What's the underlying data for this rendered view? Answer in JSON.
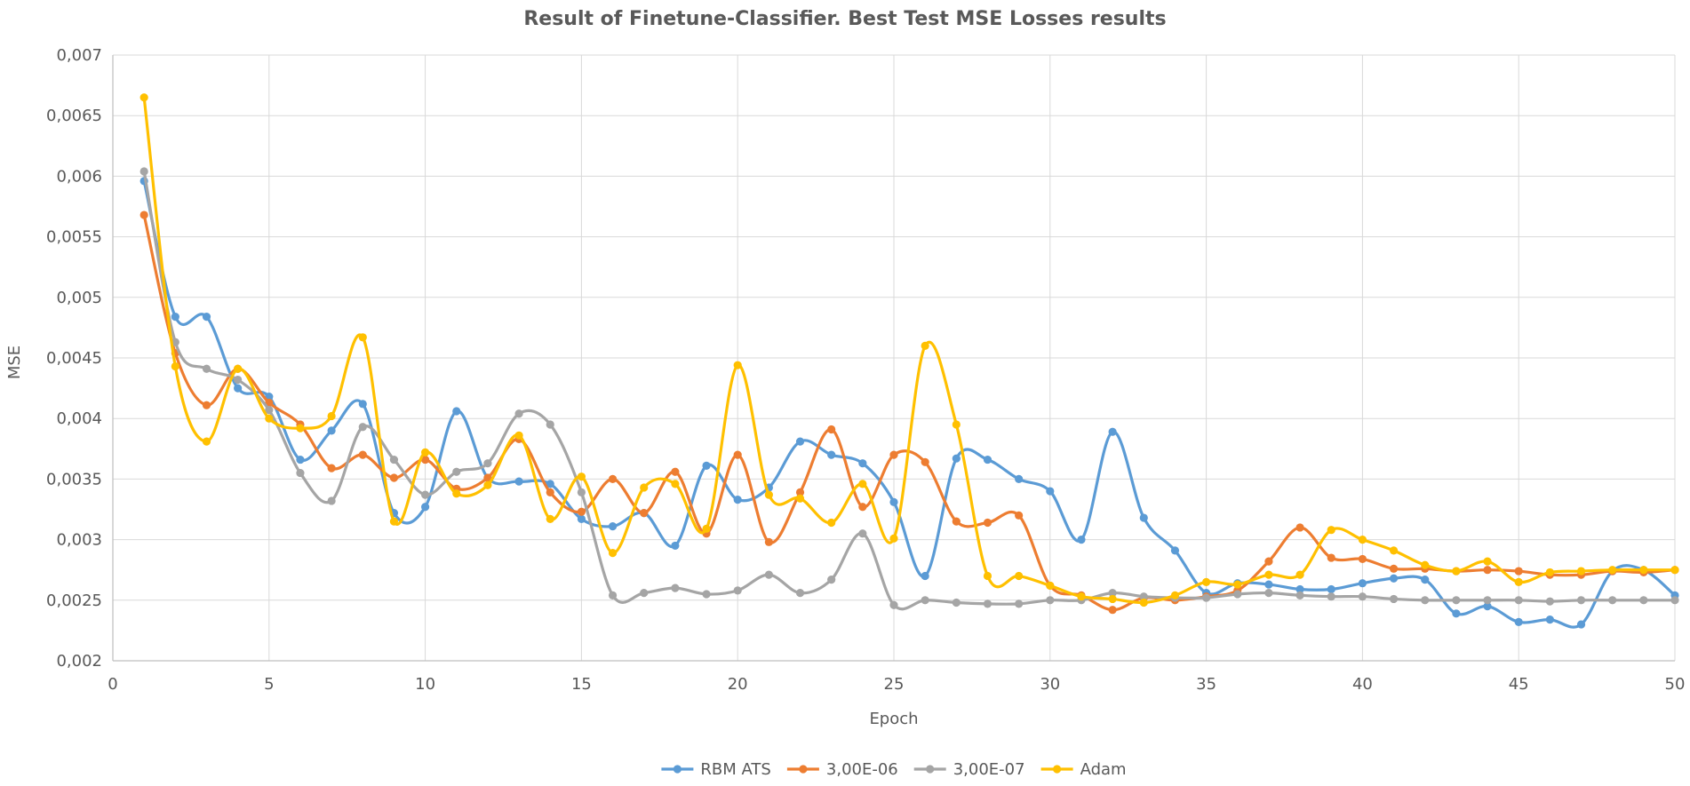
{
  "chart_data": {
    "type": "line",
    "title": "Result of Finetune-Classifier. Best Test MSE Losses results",
    "xlabel": "Epoch",
    "ylabel": "MSE",
    "xlim": [
      0,
      50
    ],
    "ylim": [
      0.002,
      0.007
    ],
    "x_ticks": [
      0,
      5,
      10,
      15,
      20,
      25,
      30,
      35,
      40,
      45,
      50
    ],
    "x_tick_labels": [
      "0",
      "5",
      "10",
      "15",
      "20",
      "25",
      "30",
      "35",
      "40",
      "45",
      "50"
    ],
    "y_ticks": [
      0.002,
      0.0025,
      0.003,
      0.0035,
      0.004,
      0.0045,
      0.005,
      0.0055,
      0.006,
      0.0065,
      0.007
    ],
    "y_tick_labels": [
      "0,002",
      "0,0025",
      "0,003",
      "0,0035",
      "0,004",
      "0,0045",
      "0,005",
      "0,0055",
      "0,006",
      "0,0065",
      "0,007"
    ],
    "grid": true,
    "smooth": true,
    "legend_position": "bottom",
    "x": [
      1,
      2,
      3,
      4,
      5,
      6,
      7,
      8,
      9,
      10,
      11,
      12,
      13,
      14,
      15,
      16,
      17,
      18,
      19,
      20,
      21,
      22,
      23,
      24,
      25,
      26,
      27,
      28,
      29,
      30,
      31,
      32,
      33,
      34,
      35,
      36,
      37,
      38,
      39,
      40,
      41,
      42,
      43,
      44,
      45,
      46,
      47,
      48,
      49,
      50
    ],
    "series": [
      {
        "name": "RBM ATS",
        "color": "#5b9bd5",
        "values": [
          0.00596,
          0.00484,
          0.00484,
          0.00425,
          0.00418,
          0.00366,
          0.0039,
          0.00412,
          0.00322,
          0.00327,
          0.00406,
          0.00351,
          0.00348,
          0.00346,
          0.00317,
          0.00311,
          0.00322,
          0.00295,
          0.00361,
          0.00333,
          0.00343,
          0.00381,
          0.0037,
          0.00363,
          0.00331,
          0.0027,
          0.00367,
          0.00366,
          0.0035,
          0.0034,
          0.003,
          0.00389,
          0.00318,
          0.00291,
          0.00256,
          0.00264,
          0.00263,
          0.00259,
          0.00259,
          0.00264,
          0.00268,
          0.00267,
          0.00239,
          0.00245,
          0.00232,
          0.00234,
          0.0023,
          0.00274,
          0.00275,
          0.00254
        ]
      },
      {
        "name": "3,00E-06",
        "color": "#ed7d31",
        "values": [
          0.00568,
          0.00454,
          0.00411,
          0.00441,
          0.00413,
          0.00395,
          0.00359,
          0.0037,
          0.00351,
          0.00366,
          0.00342,
          0.00351,
          0.00383,
          0.00339,
          0.00323,
          0.0035,
          0.00322,
          0.00356,
          0.00305,
          0.0037,
          0.00298,
          0.00339,
          0.00391,
          0.00327,
          0.0037,
          0.00364,
          0.00315,
          0.00314,
          0.0032,
          0.00262,
          0.00254,
          0.00242,
          0.00252,
          0.0025,
          0.00253,
          0.00258,
          0.00282,
          0.0031,
          0.00285,
          0.00284,
          0.00276,
          0.00276,
          0.00274,
          0.00275,
          0.00274,
          0.00271,
          0.00271,
          0.00274,
          0.00273,
          0.00275
        ]
      },
      {
        "name": "3,00E-07",
        "color": "#a5a5a5",
        "values": [
          0.00604,
          0.00463,
          0.00441,
          0.00432,
          0.00407,
          0.00355,
          0.00332,
          0.00393,
          0.00366,
          0.00337,
          0.00356,
          0.00363,
          0.00404,
          0.00395,
          0.00339,
          0.00254,
          0.00256,
          0.0026,
          0.00255,
          0.00258,
          0.00271,
          0.00256,
          0.00267,
          0.00305,
          0.00246,
          0.0025,
          0.00248,
          0.00247,
          0.00247,
          0.0025,
          0.0025,
          0.00256,
          0.00253,
          0.00252,
          0.00252,
          0.00255,
          0.00256,
          0.00254,
          0.00253,
          0.00253,
          0.00251,
          0.0025,
          0.0025,
          0.0025,
          0.0025,
          0.00249,
          0.0025,
          0.0025,
          0.0025,
          0.0025
        ]
      },
      {
        "name": "Adam",
        "color": "#ffc000",
        "values": [
          0.00665,
          0.00443,
          0.00381,
          0.00441,
          0.004,
          0.00392,
          0.00402,
          0.00467,
          0.00315,
          0.00372,
          0.00338,
          0.00345,
          0.00386,
          0.00317,
          0.00352,
          0.00289,
          0.00343,
          0.00346,
          0.00309,
          0.00444,
          0.00337,
          0.00334,
          0.00314,
          0.00346,
          0.00301,
          0.0046,
          0.00395,
          0.0027,
          0.0027,
          0.00262,
          0.00253,
          0.00251,
          0.00248,
          0.00254,
          0.00265,
          0.00263,
          0.00271,
          0.00271,
          0.00308,
          0.003,
          0.00291,
          0.00279,
          0.00274,
          0.00282,
          0.00265,
          0.00273,
          0.00274,
          0.00275,
          0.00275,
          0.00275
        ]
      }
    ]
  }
}
